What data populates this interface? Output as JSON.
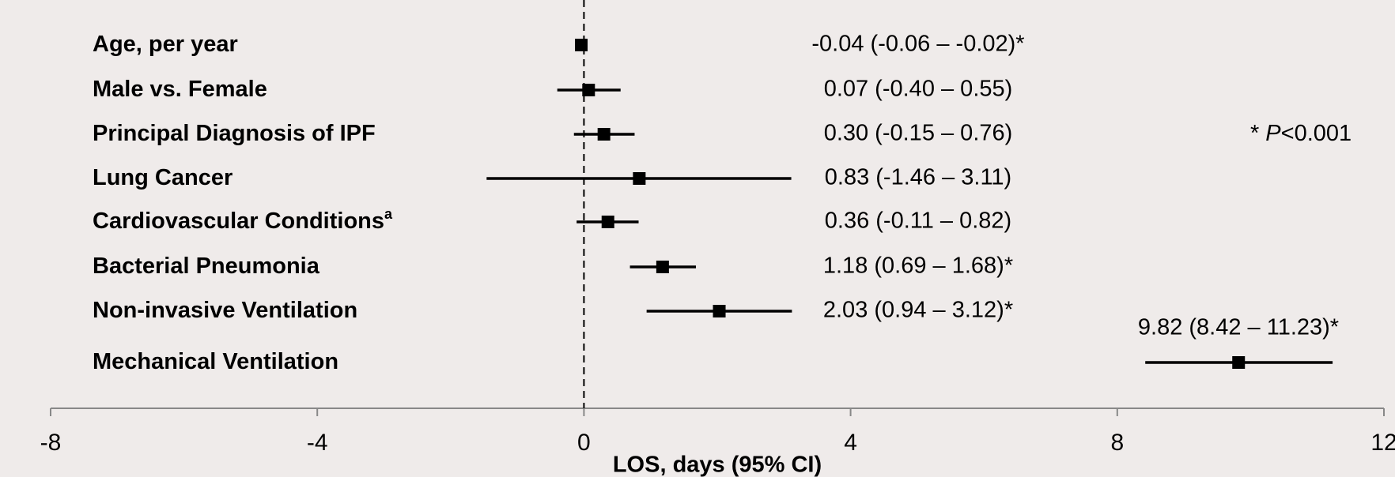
{
  "chart_data": {
    "type": "forest",
    "categories": [
      "Age, per year",
      "Male vs. Female",
      "Principal Diagnosis of IPF",
      "Lung Cancer",
      "Cardiovascular Conditions",
      "Bacterial Pneumonia",
      "Non-invasive Ventilation",
      "Mechanical Ventilation"
    ],
    "category_superscripts": [
      null,
      null,
      null,
      null,
      "a",
      null,
      null,
      null
    ],
    "values": [
      -0.04,
      0.07,
      0.3,
      0.83,
      0.36,
      1.18,
      2.03,
      9.82
    ],
    "lower": [
      -0.06,
      -0.4,
      -0.15,
      -1.46,
      -0.11,
      0.69,
      0.94,
      8.42
    ],
    "upper": [
      -0.02,
      0.55,
      0.76,
      3.11,
      0.82,
      1.68,
      3.12,
      11.23
    ],
    "value_labels": [
      "-0.04 (-0.06 – -0.02)*",
      "0.07 (-0.40 – 0.55)",
      "0.30 (-0.15 – 0.76)",
      "0.83 (-1.46 – 3.11)",
      "0.36 (-0.11 – 0.82)",
      "1.18 (0.69 – 1.68)*",
      "2.03 (0.94 – 3.12)*",
      "9.82 (8.42 – 11.23)*"
    ],
    "annotation": [
      "*",
      "P",
      "<0.001"
    ],
    "xlabel": "LOS, days (95% CI)",
    "xlim": [
      -8,
      12
    ],
    "xticks": [
      -8,
      -4,
      0,
      4,
      8,
      12
    ],
    "ref_line": 0,
    "color": "#000000"
  }
}
